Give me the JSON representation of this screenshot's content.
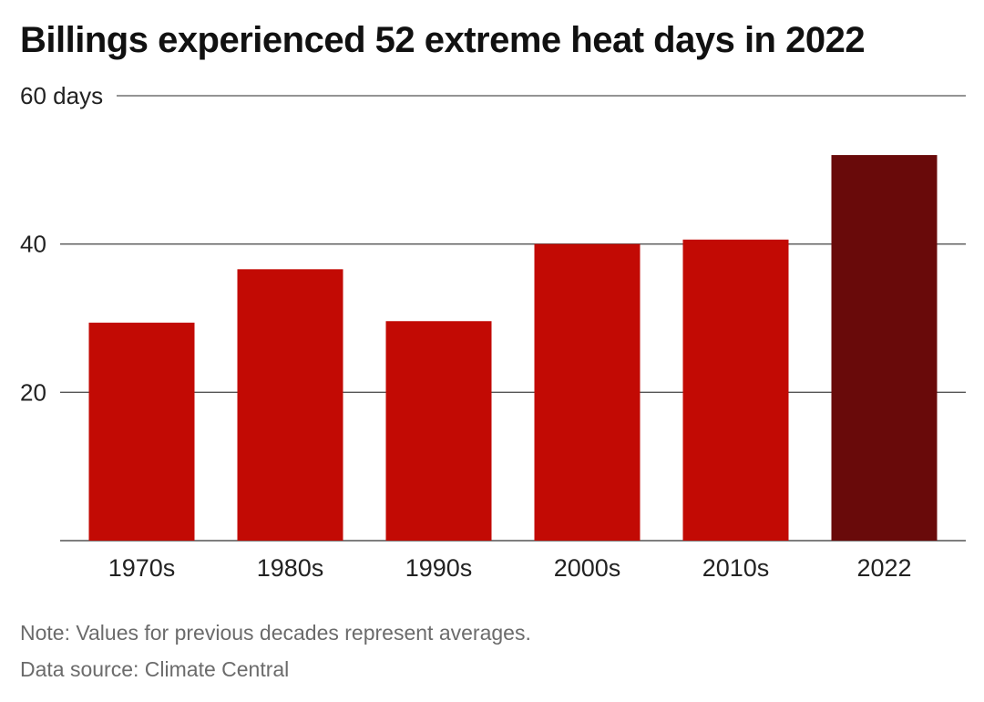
{
  "title": "Billings experienced 52 extreme heat days in 2022",
  "notes": {
    "note": "Note: Values for previous decades represent averages.",
    "source": "Data source: Climate Central"
  },
  "colors": {
    "bar": "#c20a04",
    "highlight": "#690a0a",
    "gridline": "#555555",
    "text": "#222222"
  },
  "chart_data": {
    "type": "bar",
    "title": "Billings experienced 52 extreme heat days in 2022",
    "categories": [
      "1970s",
      "1980s",
      "1990s",
      "2000s",
      "2010s",
      "2022"
    ],
    "values": [
      29.4,
      36.6,
      29.6,
      40.0,
      40.6,
      52.0
    ],
    "highlight_index": 5,
    "ylim": [
      0,
      60
    ],
    "yticks": [
      20,
      40,
      60
    ],
    "ytick_labels": [
      "20",
      "40",
      "60 days"
    ],
    "grid": true
  }
}
